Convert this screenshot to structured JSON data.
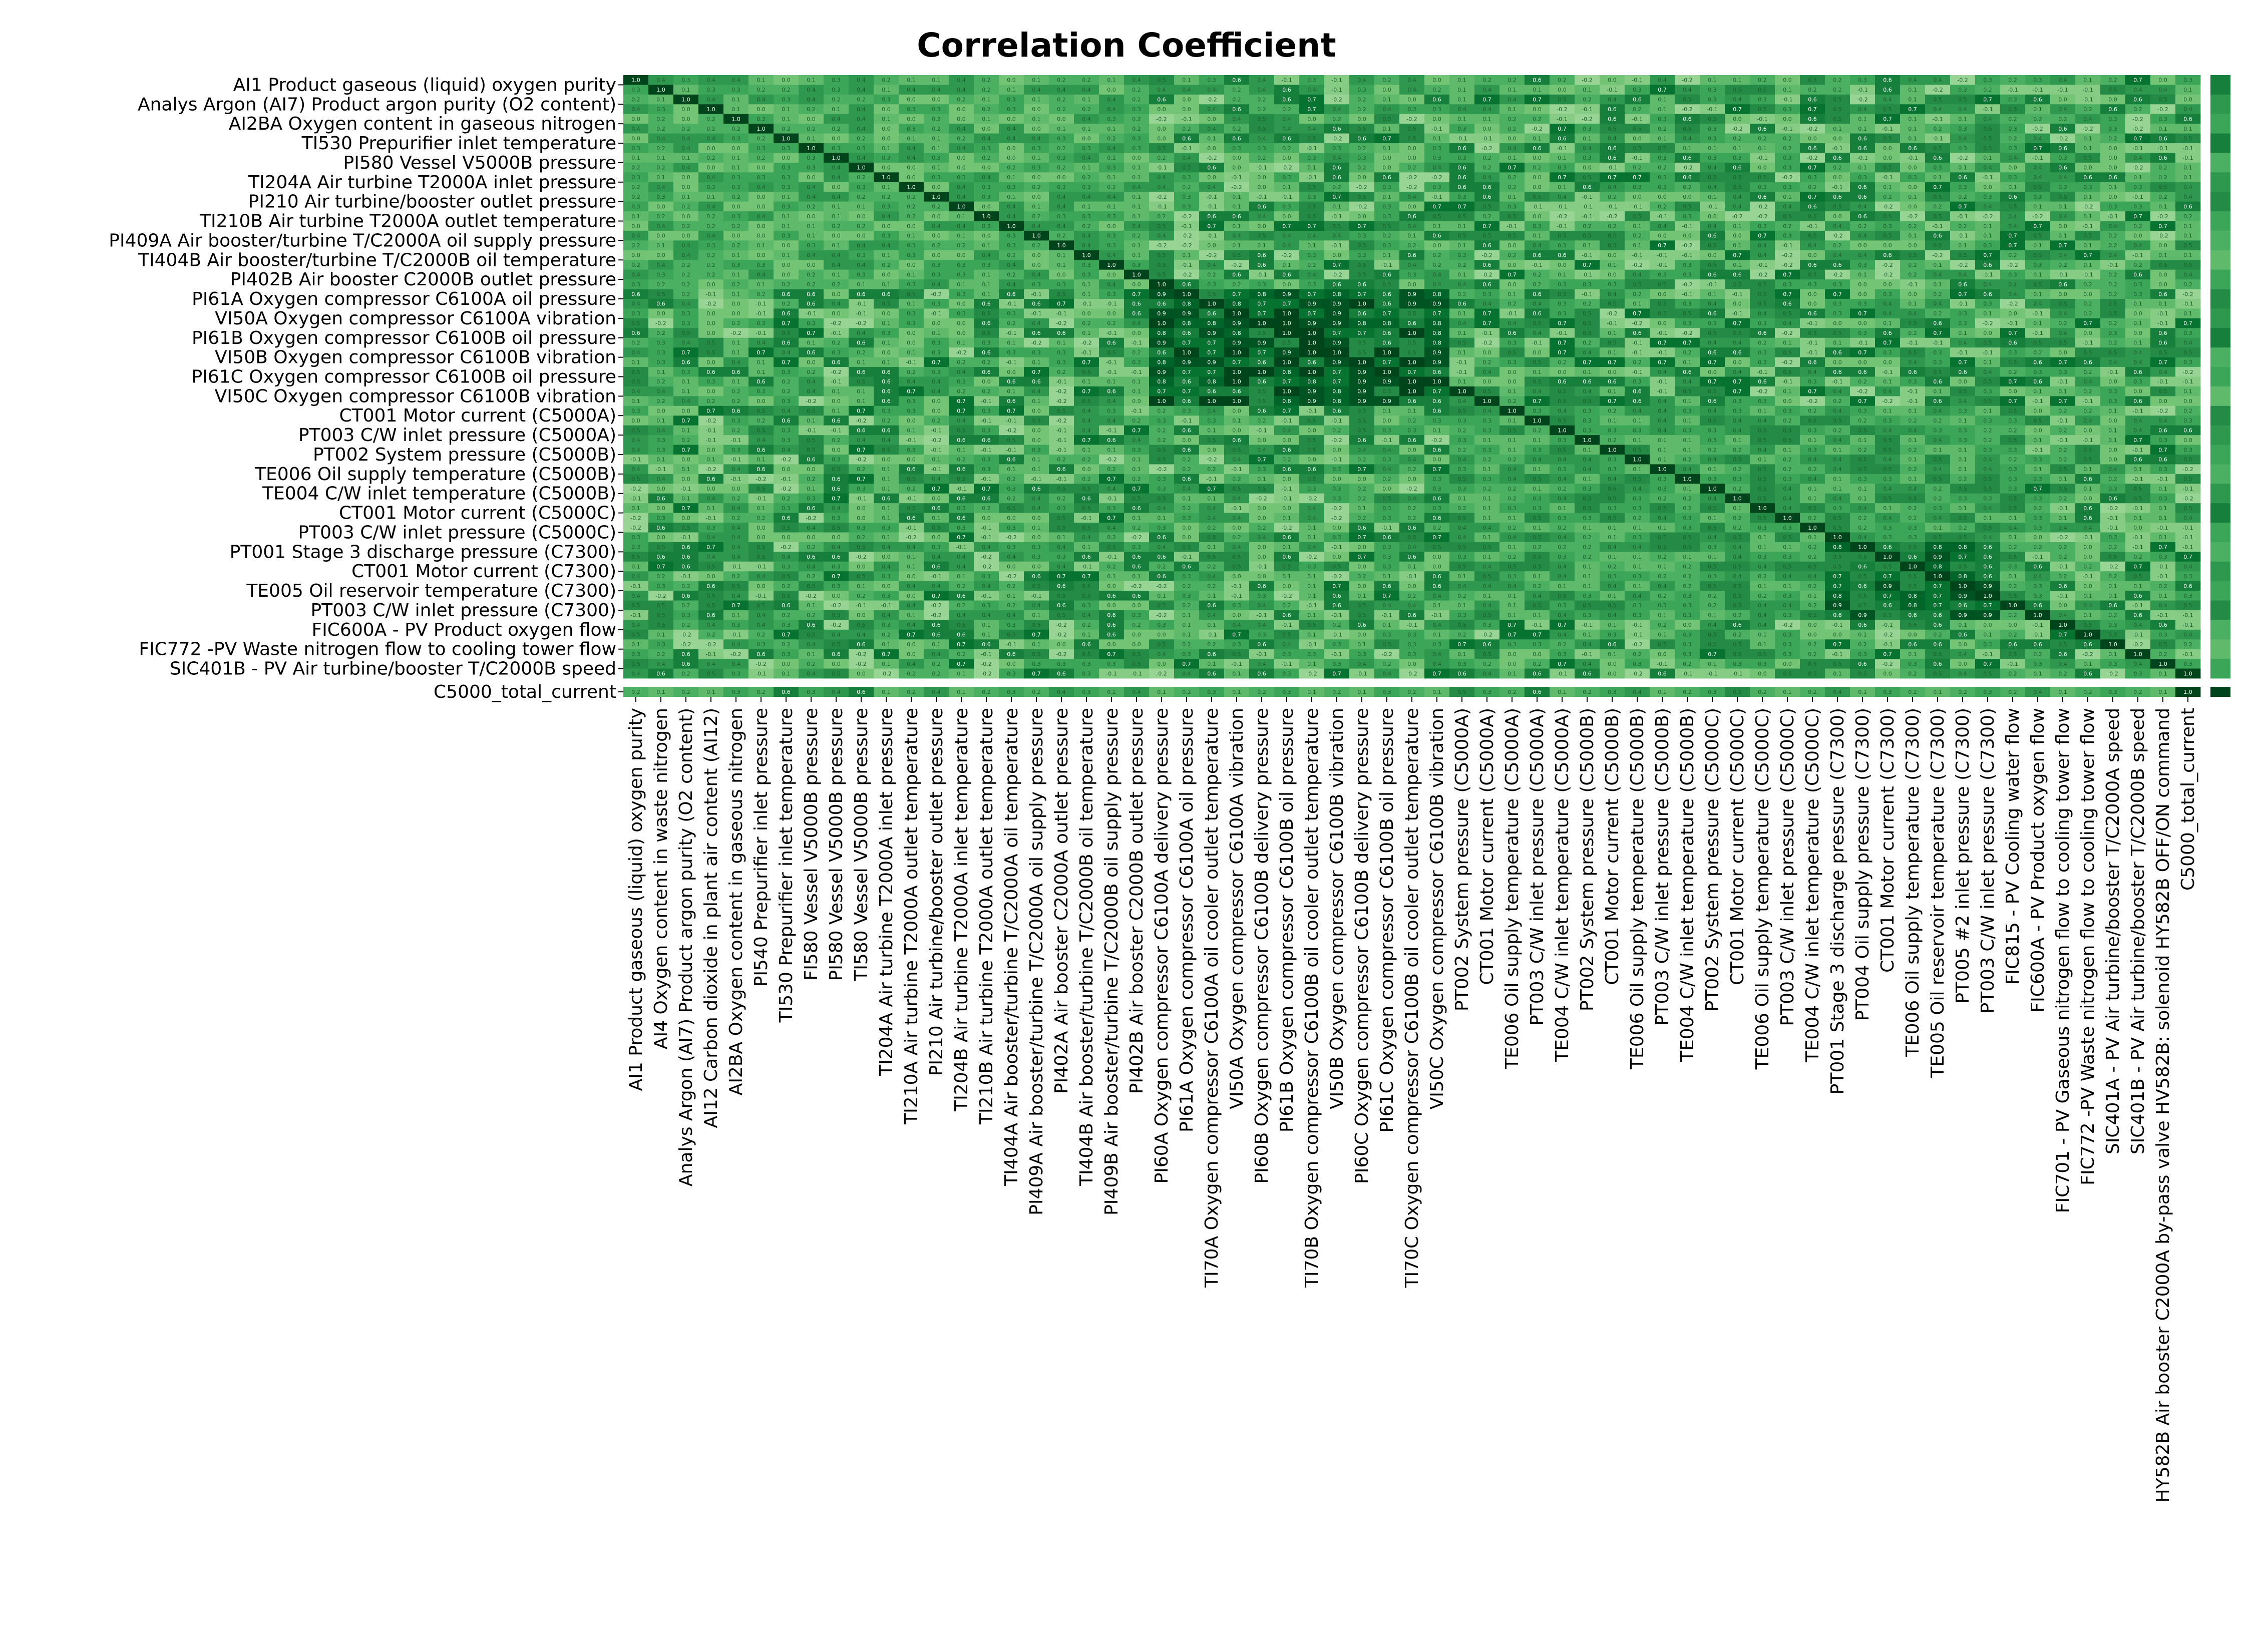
{
  "chart_data": {
    "type": "heatmap",
    "title": "Correlation Coefficient",
    "colormap": "Greens",
    "color_low": "#f7fcf5",
    "color_high": "#00441b",
    "value_range": [
      -1.0,
      1.0
    ],
    "row_labels": [
      "AI1 Product gaseous (liquid) oxygen purity",
      "Analys Argon (AI7) Product argon purity (O2 content)",
      "AI2BA Oxygen content in gaseous nitrogen",
      "TI530 Prepurifier inlet temperature",
      "PI580 Vessel V5000B pressure",
      "TI204A Air turbine T2000A inlet pressure",
      "PI210 Air turbine/booster outlet pressure",
      "TI210B Air turbine T2000A outlet temperature",
      "PI409A Air booster/turbine T/C2000A oil supply pressure",
      "TI404B Air booster/turbine T/C2000B oil temperature",
      "PI402B Air booster C2000B outlet pressure",
      "PI61A Oxygen compressor C6100A oil pressure",
      "VI50A Oxygen compressor C6100A vibration",
      "PI61B Oxygen compressor C6100B oil pressure",
      "VI50B Oxygen compressor C6100B vibration",
      "PI61C Oxygen compressor C6100B oil pressure",
      "VI50C Oxygen compressor C6100B vibration",
      "CT001 Motor current (C5000A)",
      "PT003 C/W inlet pressure (C5000A)",
      "PT002  System pressure (C5000B)",
      "TE006 Oil supply temperature (C5000B)",
      "TE004 C/W inlet temperature (C5000B)",
      "CT001 Motor current (C5000C)",
      "PT003 C/W inlet pressure (C5000C)",
      "PT001 Stage 3 discharge pressure (C7300)",
      "CT001 Motor current (C7300)",
      "TE005 Oil reservoir temperature (C7300)",
      "PT003 C/W inlet pressure (C7300)",
      "FIC600A - PV Product oxygen flow",
      "FIC772 -PV Waste nitrogen flow to cooling tower flow",
      "SIC401B - PV Air turbine/booster T/C2000B speed",
      "C5000_total_current"
    ],
    "col_labels": [
      "AI1 Product gaseous (liquid) oxygen purity",
      "AI4 Oxygen content in waste nitrogen",
      "Analys Argon (AI7) Product argon purity (O2 content)",
      "AI12 Carbon dioxide in plant air content (AI12)",
      "AI2BA Oxygen content in gaseous nitrogen",
      "PI540 Prepurifier inlet pressure",
      "TI530 Prepurifier inlet temperature",
      "FI580 Vessel V5000B pressure",
      "PI580 Vessel V5000B pressure",
      "TI580 Vessel V5000B pressure",
      "TI204A Air turbine T2000A inlet pressure",
      "TI210A Air turbine T2000A outlet temperature",
      "PI210 Air turbine/booster outlet pressure",
      "TI204B Air turbine T2000A inlet temperature",
      "TI210B Air turbine T2000A outlet temperature",
      "TI404A Air booster/turbine T/C2000A oil temperature",
      "PI409A Air booster/turbine T/C2000A oil supply pressure",
      "PI402A Air booster C2000A outlet pressure",
      "TI404B Air booster/turbine T/C2000B oil temperature",
      "PI409B Air booster/turbine T/C2000B oil supply pressure",
      "PI402B Air booster C2000B outlet pressure",
      "PI60A Oxygen compressor C6100A delivery pressure",
      "PI61A Oxygen compressor C6100A oil pressure",
      "TI70A Oxygen compressor C6100A oil cooler outlet temperature",
      "VI50A Oxygen compressor C6100A vibration",
      "PI60B Oxygen compressor C6100B delivery pressure",
      "PI61B Oxygen compressor C6100B oil pressure",
      "TI70B Oxygen compressor C6100B oil cooler outlet temperature",
      "VI50B Oxygen compressor C6100B vibration",
      "PI60C Oxygen compressor C6100B delivery pressure",
      "PI61C Oxygen compressor C6100B oil pressure",
      "TI70C Oxygen compressor C6100B oil cooler outlet temperature",
      "VI50C Oxygen compressor C6100B vibration",
      "PT002  System pressure (C5000A)",
      "CT001 Motor current (C5000A)",
      "TE006 Oil supply temperature (C5000A)",
      "PT003 C/W inlet pressure (C5000A)",
      "TE004 C/W inlet temperature (C5000A)",
      "PT002  System pressure (C5000B)",
      "CT001 Motor current (C5000B)",
      "TE006 Oil supply temperature (C5000B)",
      "PT003 C/W inlet pressure (C5000B)",
      "TE004 C/W inlet temperature (C5000B)",
      "PT002  System pressure (C5000C)",
      "CT001 Motor current (C5000C)",
      "TE006 Oil supply temperature (C5000C)",
      "PT003 C/W inlet pressure (C5000C)",
      "TE004 C/W inlet temperature (C5000C)",
      "PT001 Stage 3 discharge pressure (C7300)",
      "PT004 Oil supply pressure (C7300)",
      "CT001 Motor current (C7300)",
      "TE006 Oil supply temperature (C7300)",
      "TE005 Oil reservoir temperature (C7300)",
      "PT005 #2 inlet pressure (C7300)",
      "PT003 C/W inlet pressure (C7300)",
      "FIC815 - PV Cooling water flow",
      "FIC600A - PV Product oxygen flow",
      "FIC701 - PV Gaseous nitrogen flow to cooling tower flow",
      "FIC772 -PV Waste nitrogen flow to cooling tower flow",
      "SIC401A - PV Air turbine/booster T/C2000A speed",
      "SIC401B - PV Air turbine/booster T/C2000B speed",
      "HY582B Air booster C2000A by-pass valve HV582B: solenoid HY582B OFF/ON command",
      "C5000_total_current"
    ],
    "rows_per_label": 2,
    "values_note": "",
    "values_blocks": [
      {
        "rows": [
          0,
          11
        ],
        "cols": [
          0,
          21
        ],
        "value": 0.2
      },
      {
        "rows": [
          11,
          17
        ],
        "cols": [
          21,
          33
        ],
        "value": 0.75
      },
      {
        "rows": [
          17,
          28
        ],
        "cols": [
          33,
          56
        ],
        "value": 0.3
      },
      {
        "rows": [
          24,
          28
        ],
        "cols": [
          48,
          55
        ],
        "value": 0.7
      }
    ],
    "colorbar_values": [
      0.6,
      0.4,
      0.3,
      0.6,
      0.2,
      0.4,
      0.5,
      0.3,
      0.2,
      0.1,
      0.3,
      0.5,
      0.4,
      0.6,
      0.2,
      0.3,
      0.1,
      0.5,
      0.4,
      0.3,
      0.2,
      0.4,
      0.6,
      0.3,
      0.2,
      0.4,
      0.3,
      0.5,
      0.2,
      0.1,
      0.3,
      1.0
    ],
    "last_row_values": [
      0.2,
      0.1,
      0.2,
      0.1,
      0.3,
      0.2,
      0.6,
      0.3,
      0.4,
      0.6,
      0.1,
      0.2,
      0.4,
      0.1,
      0.2,
      0.3,
      0.2,
      0.4,
      0.3,
      0.2,
      0.4,
      0.1,
      0.2,
      0.3,
      0.1,
      0.2,
      0.3,
      0.1,
      0.2,
      0.1,
      0.3,
      0.2,
      0.1,
      0.5,
      0.3,
      0.2,
      0.6,
      0.1,
      0.2,
      0.3,
      0.4,
      0.1,
      0.2,
      0.3,
      0.5,
      0.2,
      0.1,
      0.2,
      0.4,
      0.1,
      0.3,
      0.2,
      0.1,
      0.2,
      0.3,
      0.2,
      0.4,
      0.1,
      0.2,
      0.3,
      0.2,
      0.1,
      1.0
    ]
  }
}
